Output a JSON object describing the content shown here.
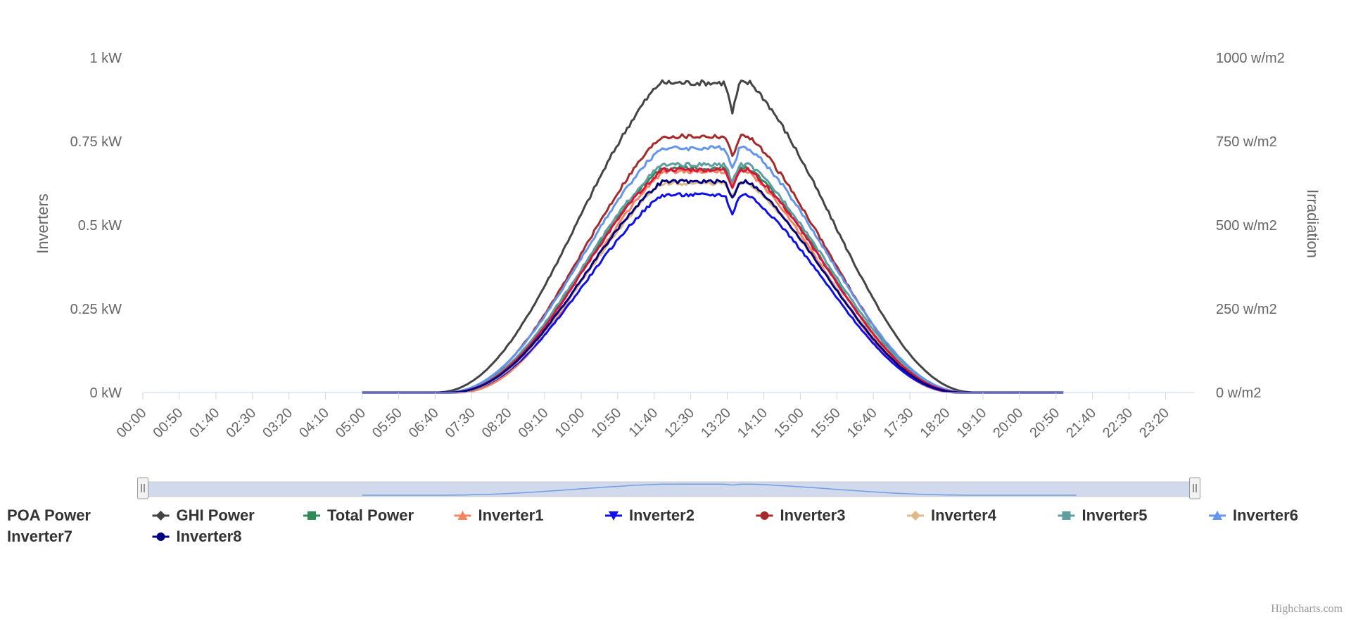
{
  "credits": "Highcharts.com",
  "chart_data": {
    "type": "line",
    "title": "",
    "x_categories": [
      "00:00",
      "00:50",
      "01:40",
      "02:30",
      "03:20",
      "04:10",
      "05:00",
      "05:50",
      "06:40",
      "07:30",
      "08:20",
      "09:10",
      "10:00",
      "10:50",
      "11:40",
      "12:30",
      "13:20",
      "14:10",
      "15:00",
      "15:50",
      "16:40",
      "17:30",
      "18:20",
      "19:10",
      "20:00",
      "20:50",
      "21:40",
      "22:30",
      "23:20"
    ],
    "x_range_minutes": [
      0,
      1440
    ],
    "left_axis": {
      "title": "Inverters",
      "ticks": [
        "0 kW",
        "0.25 kW",
        "0.5 kW",
        "0.75 kW",
        "1 kW"
      ],
      "range": [
        0,
        1
      ],
      "unit": "kW"
    },
    "right_axis": {
      "title": "Irradiation",
      "ticks": [
        "0 w/m2",
        "250 w/m2",
        "500 w/m2",
        "750 w/m2",
        "1000 w/m2"
      ],
      "range": [
        0,
        1000
      ],
      "unit": "w/m2"
    },
    "grid": false,
    "legend_position": "bottom",
    "series": [
      {
        "name": "POA Power",
        "color": "#7cb5ec",
        "marker": "none",
        "axis": "right",
        "start": 0,
        "end": 0,
        "peak": 0,
        "rise_from": 0,
        "fall_to": 0,
        "peak_time": 0,
        "dip": 0,
        "visible_line": false
      },
      {
        "name": "GHI Power",
        "color": "#434348",
        "marker": "diamond",
        "axis": "right",
        "start": 300,
        "end": 1260,
        "peak": 925,
        "rise_from": 400,
        "fall_to": 1140,
        "peak_time": 770,
        "dip": 90,
        "visible_line": true
      },
      {
        "name": "Total Power",
        "color": "#2e8b57",
        "marker": "square",
        "axis": "left",
        "start": 300,
        "end": 1260,
        "peak": 0.67,
        "rise_from": 415,
        "fall_to": 1125,
        "peak_time": 770,
        "dip": 0.05,
        "visible_line": true
      },
      {
        "name": "Inverter1",
        "color": "#f4845f",
        "marker": "triangle",
        "axis": "left",
        "start": 300,
        "end": 1260,
        "peak": 0.66,
        "rise_from": 430,
        "fall_to": 1115,
        "peak_time": 770,
        "dip": 0.04,
        "visible_line": true
      },
      {
        "name": "Inverter2",
        "color": "#1010e8",
        "marker": "triangle-down",
        "axis": "left",
        "start": 300,
        "end": 1260,
        "peak": 0.59,
        "rise_from": 420,
        "fall_to": 1120,
        "peak_time": 770,
        "dip": 0.06,
        "visible_line": true
      },
      {
        "name": "Inverter3",
        "color": "#a52a2a",
        "marker": "circle",
        "axis": "left",
        "start": 300,
        "end": 1260,
        "peak": 0.765,
        "rise_from": 415,
        "fall_to": 1125,
        "peak_time": 770,
        "dip": 0.06,
        "visible_line": true
      },
      {
        "name": "Inverter4",
        "color": "#deb887",
        "marker": "diamond",
        "axis": "left",
        "start": 300,
        "end": 1260,
        "peak": 0.625,
        "rise_from": 420,
        "fall_to": 1125,
        "peak_time": 770,
        "dip": 0.04,
        "visible_line": true
      },
      {
        "name": "Inverter5",
        "color": "#5f9ea0",
        "marker": "square",
        "axis": "left",
        "start": 300,
        "end": 1260,
        "peak": 0.68,
        "rise_from": 415,
        "fall_to": 1130,
        "peak_time": 770,
        "dip": 0.05,
        "visible_line": true
      },
      {
        "name": "Inverter6",
        "color": "#6495ed",
        "marker": "triangle",
        "axis": "left",
        "start": 300,
        "end": 1260,
        "peak": 0.73,
        "rise_from": 412,
        "fall_to": 1130,
        "peak_time": 770,
        "dip": 0.06,
        "visible_line": true
      },
      {
        "name": "Inverter7",
        "color": "#dc143c",
        "marker": "none",
        "axis": "left",
        "start": 300,
        "end": 1260,
        "peak": 0.665,
        "rise_from": 418,
        "fall_to": 1125,
        "peak_time": 770,
        "dip": 0.05,
        "visible_line": true
      },
      {
        "name": "Inverter8",
        "color": "#000080",
        "marker": "circle",
        "axis": "left",
        "start": 300,
        "end": 1260,
        "peak": 0.63,
        "rise_from": 418,
        "fall_to": 1122,
        "peak_time": 770,
        "dip": 0.05,
        "visible_line": true
      }
    ],
    "navigator": {
      "range_start": "00:00",
      "range_end": "23:59"
    }
  }
}
